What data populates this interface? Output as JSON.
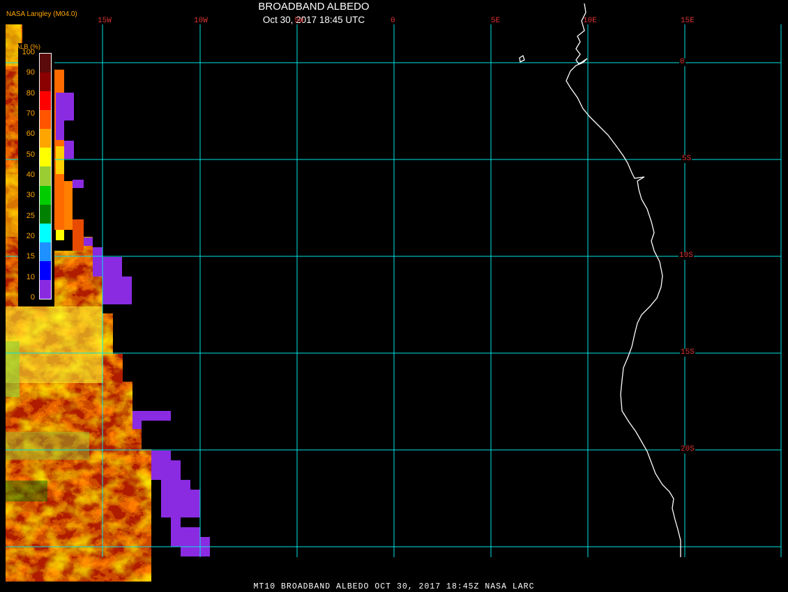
{
  "header": {
    "credit": "NASA Langley (M04.0)",
    "title": "BROADBAND ALBEDO",
    "subtitle": "Oct 30, 2017 18:45 UTC"
  },
  "footer": {
    "text": "MT10  BROADBAND ALBEDO   OCT 30, 2017 18:45Z   NASA LARC"
  },
  "grid": {
    "longitude_labels": [
      "15W",
      "10W",
      "5W",
      "0",
      "5E",
      "10E",
      "15E"
    ],
    "latitude_labels": [
      "0",
      "5S",
      "10S",
      "15S",
      "20S"
    ],
    "line_color": "#00e5e5",
    "label_color": "#dd3333"
  },
  "legend": {
    "title": "BBALB (%)",
    "ticks": [
      "100",
      "90",
      "80",
      "70",
      "60",
      "50",
      "40",
      "30",
      "25",
      "20",
      "15",
      "10",
      "0"
    ],
    "colors": [
      "#5a0a0a",
      "#8b0000",
      "#ff0000",
      "#ff5500",
      "#ffa500",
      "#ffff00",
      "#9acd32",
      "#00cc00",
      "#008000",
      "#00ffff",
      "#1e90ff",
      "#0000ff",
      "#8a2be2"
    ]
  },
  "colors": {
    "coastline": "#ffffff",
    "no_data": "#8a2be2"
  }
}
